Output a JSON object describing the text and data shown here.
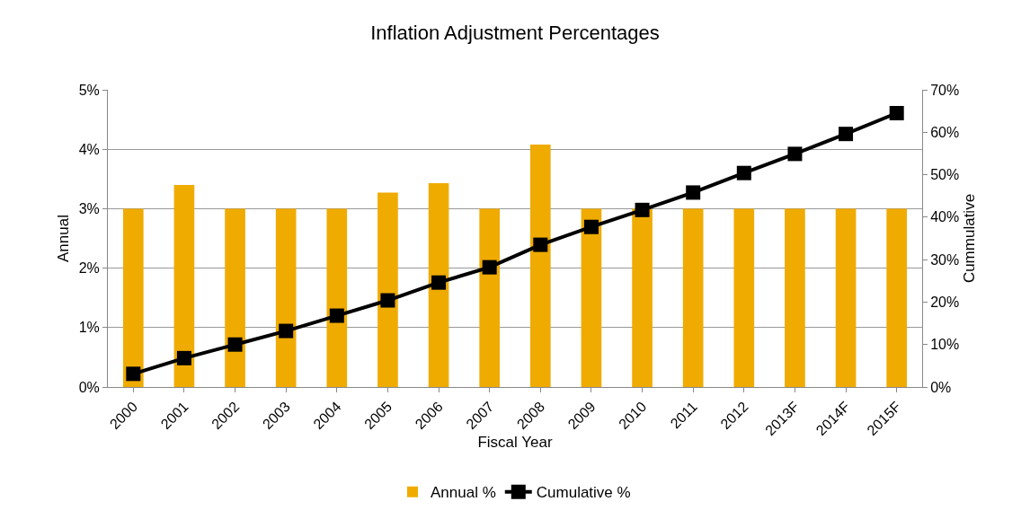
{
  "chart_data": {
    "type": "bar",
    "title": "Inflation Adjustment Percentages",
    "xlabel": "Fiscal Year",
    "ylabel": "Annual",
    "y2label": "Cummulative",
    "categories": [
      "2000",
      "2001",
      "2002",
      "2003",
      "2004",
      "2005",
      "2006",
      "2007",
      "2008",
      "2009",
      "2010",
      "2011",
      "2012",
      "2013F",
      "2014F",
      "2015F"
    ],
    "series": [
      {
        "name": "Annual %",
        "color": "#f0ab00",
        "values": [
          3,
          3.4,
          3,
          3,
          3,
          3.27,
          3.43,
          3,
          4.08,
          3,
          3,
          3,
          3,
          3,
          3,
          3
        ]
      },
      {
        "name": "Cumulative %",
        "type": "line",
        "axis": "y2",
        "color": "#000000",
        "marker": "square",
        "line_style": "solid",
        "values": [
          3.1,
          6.8,
          10.0,
          13.2,
          16.8,
          20.4,
          24.6,
          28.2,
          33.5,
          37.7,
          41.7,
          45.8,
          50.4,
          54.9,
          59.6,
          64.5
        ]
      }
    ],
    "ylim": [
      0,
      5
    ],
    "yticks": [
      {
        "value": 0,
        "label": "0%"
      },
      {
        "value": 1,
        "label": "1%"
      },
      {
        "value": 2,
        "label": "2%"
      },
      {
        "value": 3,
        "label": "3%"
      },
      {
        "value": 4,
        "label": "4%"
      },
      {
        "value": 5,
        "label": "5%"
      }
    ],
    "y2lim": [
      0,
      70
    ],
    "y2ticks": [
      {
        "value": 0,
        "label": "0%"
      },
      {
        "value": 10,
        "label": "10%"
      },
      {
        "value": 20,
        "label": "20%"
      },
      {
        "value": 30,
        "label": "30%"
      },
      {
        "value": 40,
        "label": "40%"
      },
      {
        "value": 50,
        "label": "50%"
      },
      {
        "value": 60,
        "label": "60%"
      },
      {
        "value": 70,
        "label": "70%"
      }
    ],
    "grid": "y",
    "legend": "bottom"
  }
}
